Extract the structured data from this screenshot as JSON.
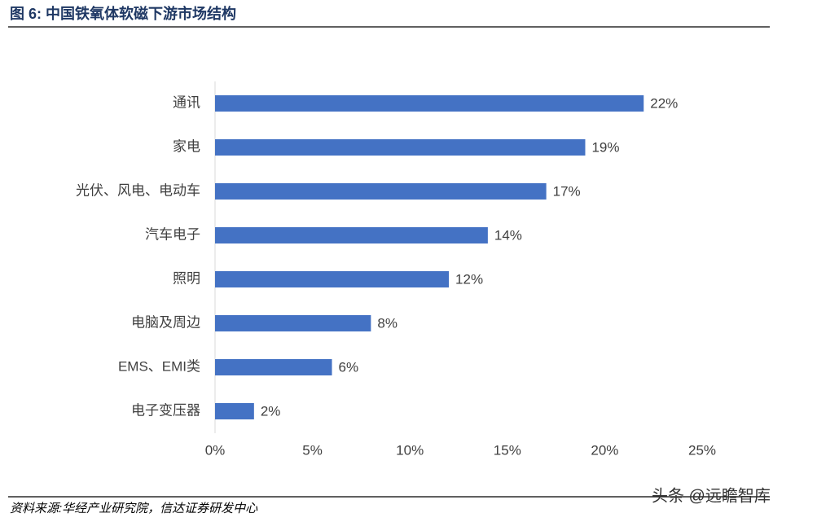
{
  "chart_data": {
    "type": "hbar",
    "title": "图 6: 中国铁氧体软磁下游市场结构",
    "source": "资料来源:华经产业研究院，信达证券研发中心",
    "watermark": "头条 @远瞻智库",
    "categories": [
      "通讯",
      "家电",
      "光伏、风电、电动车",
      "汽车电子",
      "照明",
      "电脑及周边",
      "EMS、EMI类",
      "电子变压器"
    ],
    "values": [
      22,
      19,
      17,
      14,
      12,
      8,
      6,
      2
    ],
    "value_labels": [
      "22%",
      "19%",
      "17%",
      "14%",
      "12%",
      "8%",
      "6%",
      "2%"
    ],
    "color": "#4472c4",
    "xlim": [
      0,
      25
    ],
    "xticks": [
      {
        "value": 0,
        "label": "0%"
      },
      {
        "value": 5,
        "label": "5%"
      },
      {
        "value": 10,
        "label": "10%"
      },
      {
        "value": 15,
        "label": "15%"
      },
      {
        "value": 20,
        "label": "20%"
      },
      {
        "value": 25,
        "label": "25%"
      }
    ],
    "grid": false
  }
}
